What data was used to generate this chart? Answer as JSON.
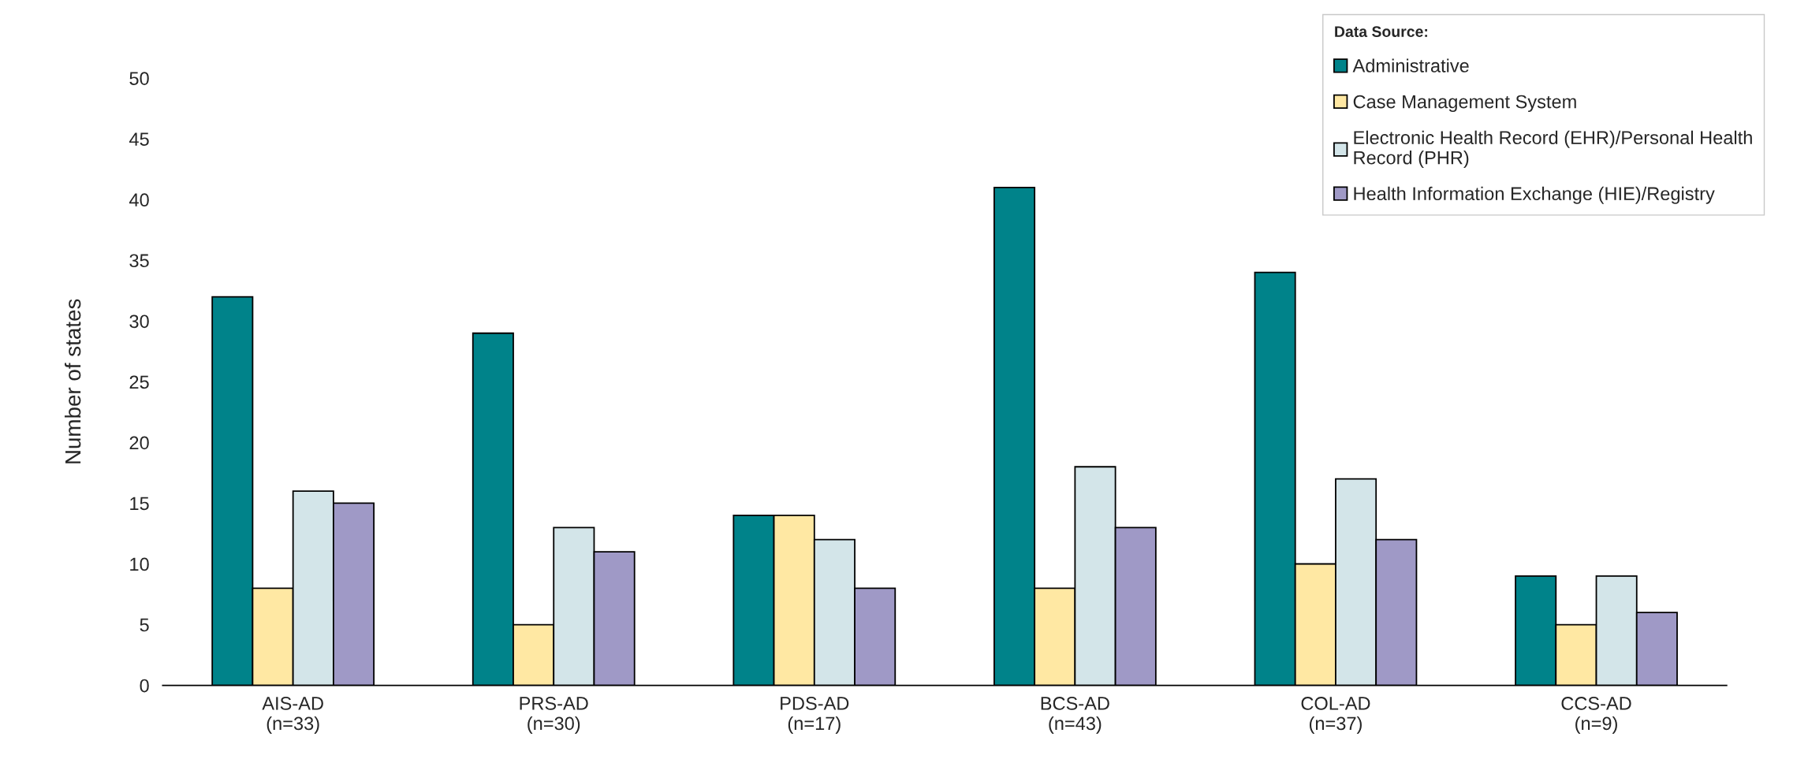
{
  "chart_data": {
    "type": "bar",
    "ylabel": "Number of states",
    "legend_title": "Data Source:",
    "categories": [
      "AIS-AD\n(n=33)",
      "PRS-AD\n(n=30)",
      "PDS-AD\n(n=17)",
      "BCS-AD\n(n=43)",
      "COL-AD\n(n=37)",
      "CCS-AD\n(n=9)"
    ],
    "series": [
      {
        "name": "Administrative",
        "color": "#00838a",
        "values": [
          32,
          29,
          14,
          41,
          34,
          9
        ]
      },
      {
        "name": "Case Management System",
        "color": "#ffe8a3",
        "values": [
          8,
          5,
          14,
          8,
          10,
          5
        ]
      },
      {
        "name": "Electronic Health Record (EHR)/Personal Health\nRecord (PHR)",
        "color": "#d3e5e9",
        "values": [
          16,
          13,
          12,
          18,
          17,
          9
        ]
      },
      {
        "name": "Health Information Exchange (HIE)/Registry",
        "color": "#9f99c6",
        "values": [
          15,
          11,
          8,
          13,
          12,
          6
        ]
      }
    ],
    "ylim": [
      0,
      50
    ],
    "yticks": [
      0,
      5,
      10,
      15,
      20,
      25,
      30,
      35,
      40,
      45,
      50
    ],
    "grid": false,
    "legend": "top right"
  }
}
